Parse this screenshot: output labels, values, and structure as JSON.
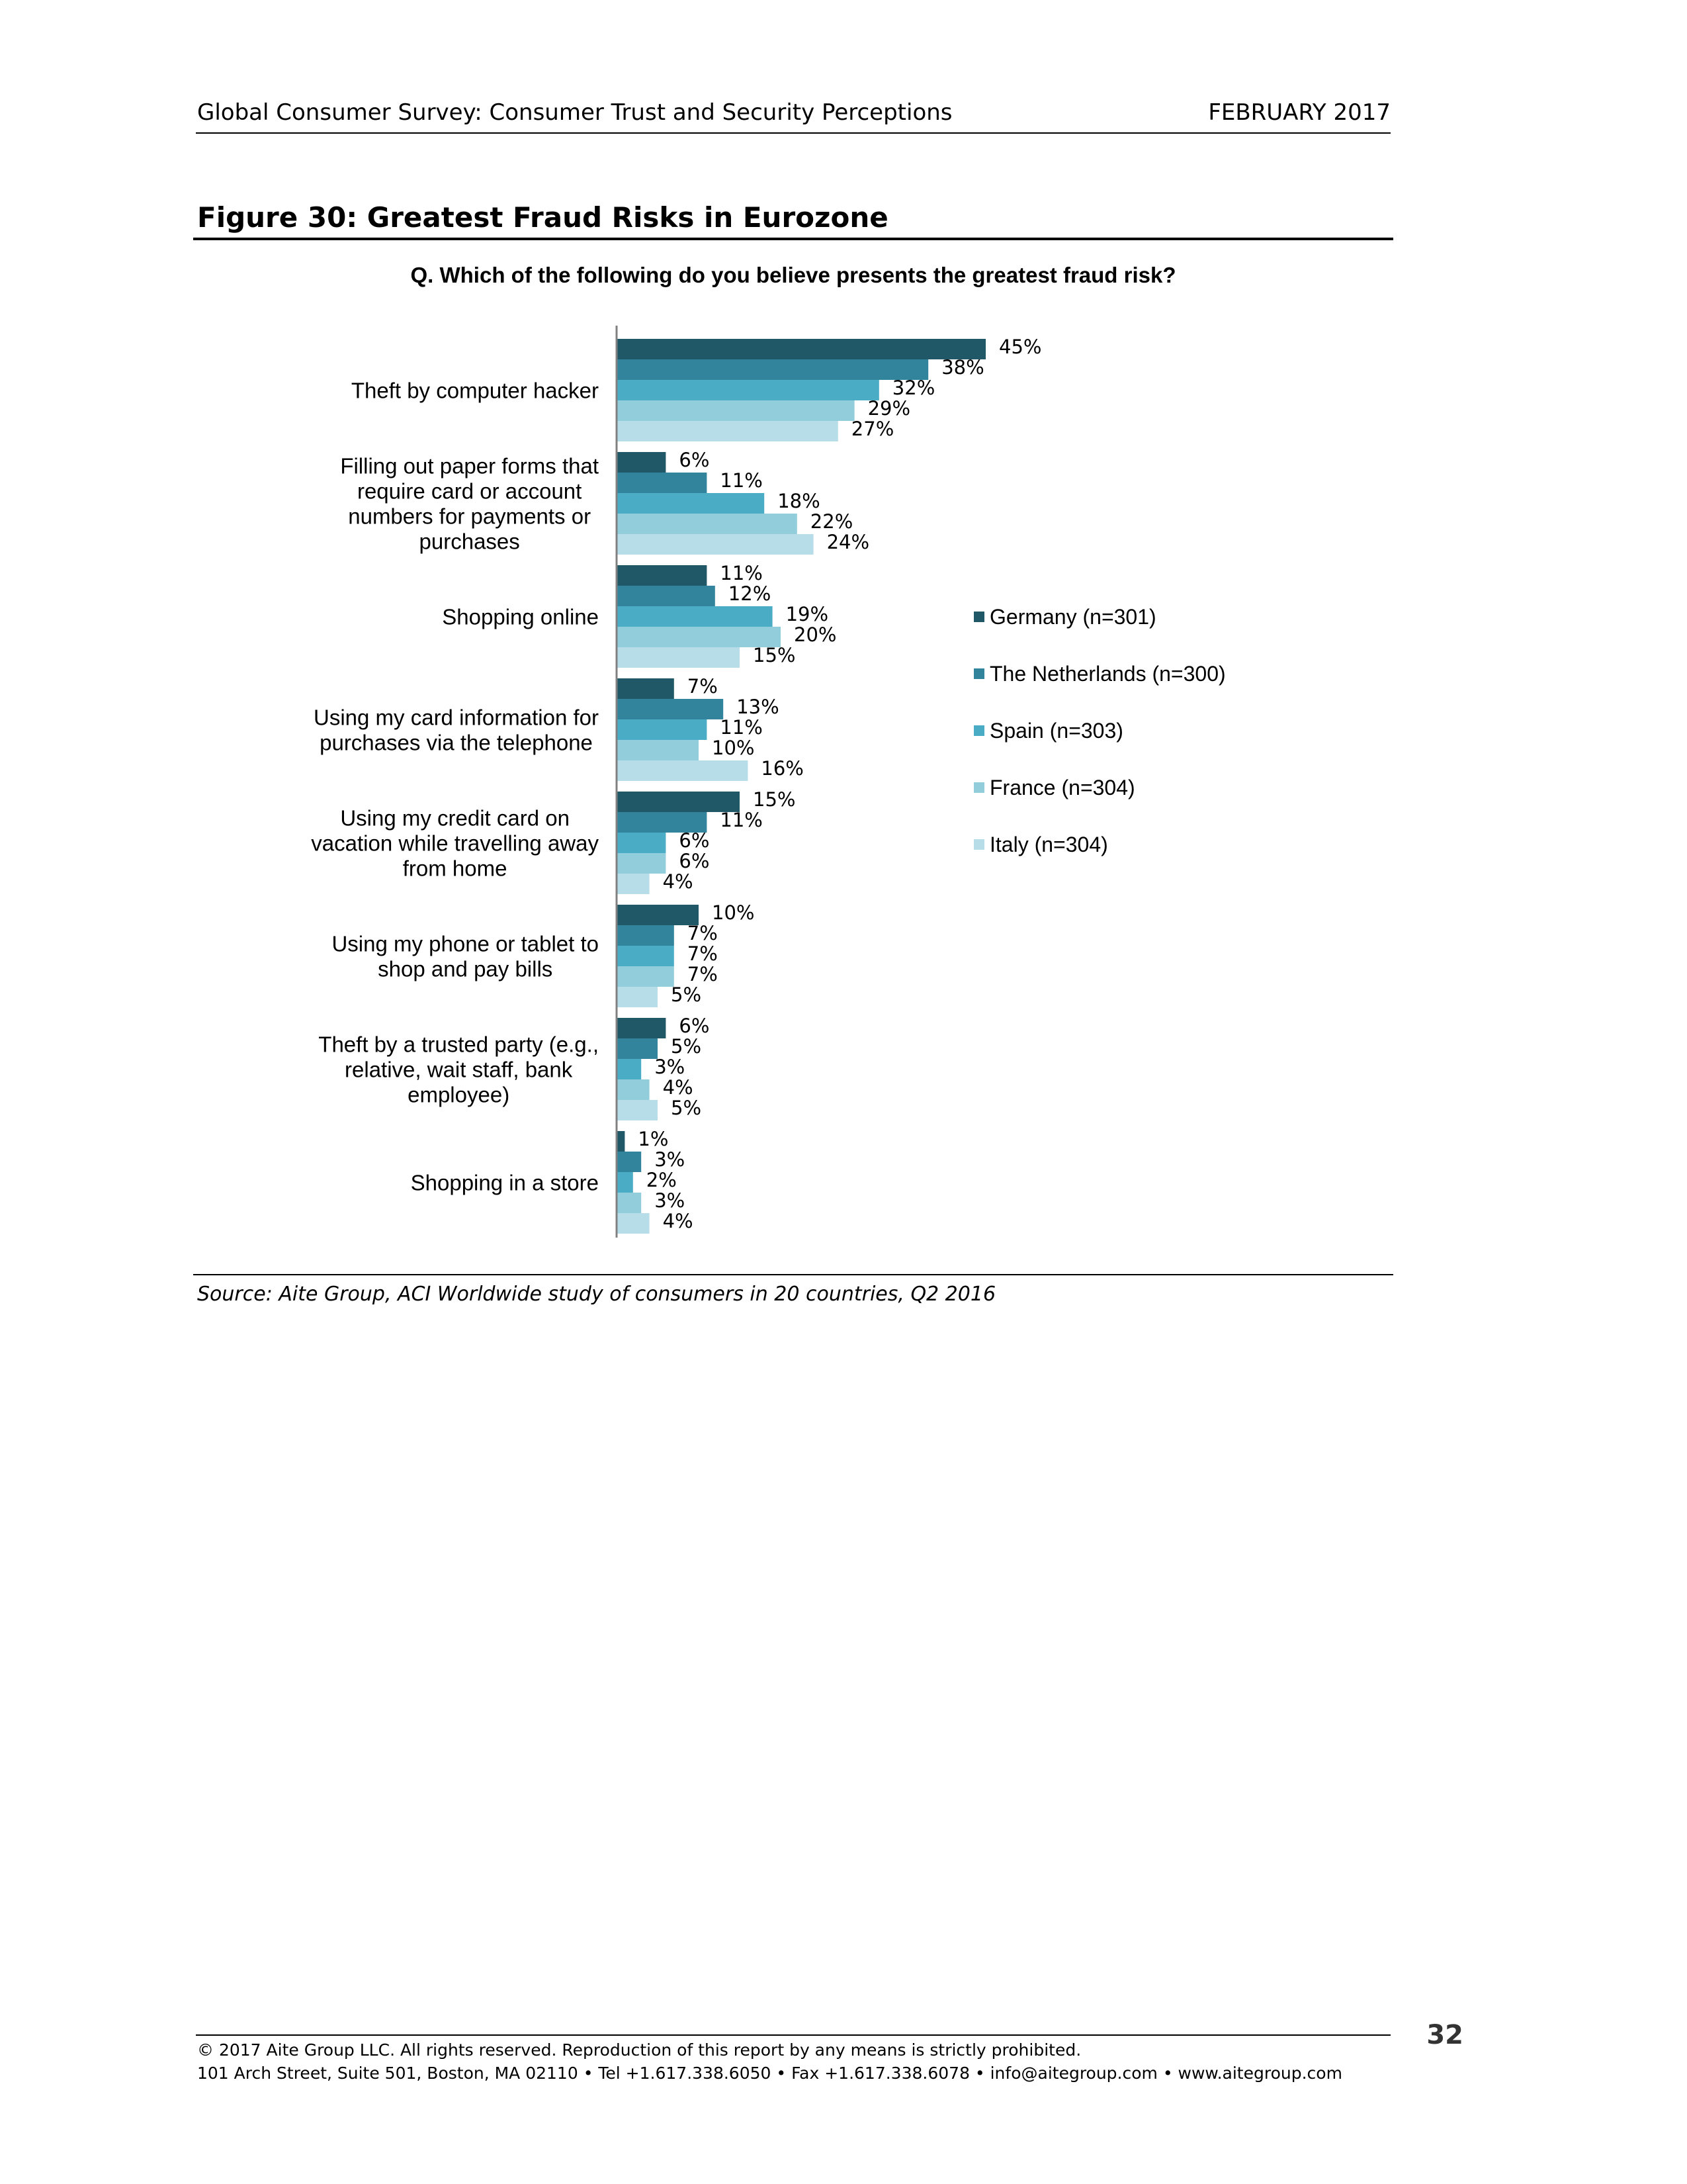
{
  "header": {
    "left": "Global Consumer Survey: Consumer Trust and Security Perceptions",
    "right": "FEBRUARY 2017"
  },
  "figure": {
    "title": "Figure 30: Greatest Fraud Risks in Eurozone",
    "question": "Q. Which of the following do you believe presents the greatest fraud risk?",
    "source": "Source: Aite Group, ACI Worldwide study of consumers in 20 countries, Q2 2016"
  },
  "colors": {
    "germany": "#215868",
    "netherlands": "#31849b",
    "spain": "#4bacc6",
    "france": "#92cddc",
    "italy": "#b7dde8",
    "axis": "#808080"
  },
  "chart_data": {
    "type": "bar",
    "orientation": "horizontal",
    "categories": [
      "Theft by computer hacker",
      "Filling out paper forms that require card or account numbers for payments or purchases",
      "Shopping online",
      "Using my card information for purchases via the telephone",
      "Using my credit card on vacation while travelling away from home",
      "Using my phone or tablet to shop and pay bills",
      "Theft by a trusted party (e.g., relative, wait staff, bank employee)",
      "Shopping in a store"
    ],
    "category_lines": [
      [
        "Theft by computer hacker"
      ],
      [
        "Filling out paper forms that",
        "require card or account",
        "numbers for payments or",
        "purchases"
      ],
      [
        "Shopping online"
      ],
      [
        "Using my card information for",
        "purchases via the telephone"
      ],
      [
        "Using my credit card on",
        "vacation while travelling away",
        "from home"
      ],
      [
        "Using my phone or tablet to",
        "shop and pay bills"
      ],
      [
        "Theft by a trusted party (e.g.,",
        "relative, wait staff, bank",
        "employee)"
      ],
      [
        "Shopping in a store"
      ]
    ],
    "series": [
      {
        "name": "Germany (n=301)",
        "color": "#215868",
        "values": [
          45,
          6,
          11,
          7,
          15,
          10,
          6,
          1
        ]
      },
      {
        "name": "The Netherlands (n=300)",
        "color": "#31849b",
        "values": [
          38,
          11,
          12,
          13,
          11,
          7,
          5,
          3
        ]
      },
      {
        "name": "Spain (n=303)",
        "color": "#4bacc6",
        "values": [
          32,
          18,
          19,
          11,
          6,
          7,
          3,
          2
        ]
      },
      {
        "name": "France (n=304)",
        "color": "#92cddc",
        "values": [
          29,
          22,
          20,
          10,
          6,
          7,
          4,
          3
        ]
      },
      {
        "name": "Italy (n=304)",
        "color": "#b7dde8",
        "values": [
          27,
          24,
          15,
          16,
          4,
          5,
          5,
          4
        ]
      }
    ],
    "value_suffix": "%",
    "xlim": [
      0,
      50
    ],
    "grid": false,
    "legend": "right"
  },
  "footer": {
    "page_number": "32",
    "copyright": "© 2017 Aite Group LLC. All rights reserved. Reproduction of this report by any means is strictly prohibited.",
    "address": "101 Arch Street, Suite 501, Boston, MA 02110 • Tel +1.617.338.6050 • Fax +1.617.338.6078 • info@aitegroup.com • www.aitegroup.com"
  }
}
